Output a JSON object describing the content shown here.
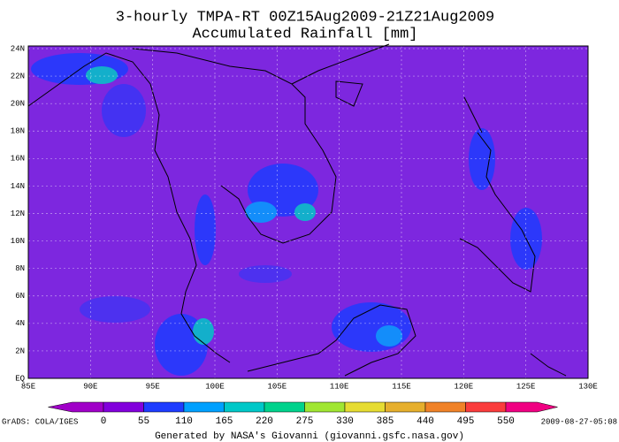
{
  "header": {
    "title": "3-hourly TMPA-RT 00Z15Aug2009-21Z21Aug2009",
    "subtitle": "Accumulated Rainfall [mm]"
  },
  "map": {
    "lon_labels": [
      "85E",
      "90E",
      "95E",
      "100E",
      "105E",
      "110E",
      "115E",
      "120E",
      "125E",
      "130E"
    ],
    "lat_labels": [
      "24N",
      "22N",
      "20N",
      "18N",
      "16N",
      "14N",
      "12N",
      "10N",
      "8N",
      "6N",
      "4N",
      "2N",
      "EQ"
    ]
  },
  "colorbar": {
    "labels": [
      0,
      55,
      110,
      165,
      220,
      275,
      330,
      385,
      440,
      495,
      550
    ],
    "colors": [
      "#a000c8",
      "#8200dc",
      "#1e3cff",
      "#00a0ff",
      "#00c8c8",
      "#00d28c",
      "#a0e632",
      "#e6dc32",
      "#e6af2d",
      "#f08228",
      "#fa3c3c",
      "#f00082"
    ]
  },
  "footer": {
    "left": "GrADS: COLA/IGES",
    "right": "2009-08-27-05:08",
    "generated": "Generated by NASA's Giovanni (giovanni.gsfc.nasa.gov)"
  }
}
